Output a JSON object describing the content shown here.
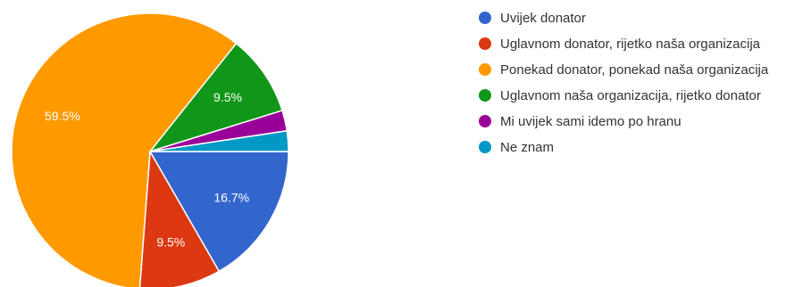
{
  "chart_data": {
    "type": "pie",
    "slices": [
      {
        "label": "Uvijek donator",
        "value": 16.7,
        "percent_label": "16.7%",
        "color": "#3366cc"
      },
      {
        "label": "Uglavnom donator, rijetko naša organizacija",
        "value": 9.5,
        "percent_label": "9.5%",
        "color": "#dc3912"
      },
      {
        "label": "Ponekad donator, ponekad naša organizacija",
        "value": 59.5,
        "percent_label": "59.5%",
        "color": "#ff9900"
      },
      {
        "label": "Uglavnom naša organizacija, rijetko donator",
        "value": 9.5,
        "percent_label": "9.5%",
        "color": "#109618"
      },
      {
        "label": "Mi uvijek sami idemo po hranu",
        "value": 2.4,
        "percent_label": "",
        "color": "#990099"
      },
      {
        "label": "Ne znam",
        "value": 2.4,
        "percent_label": "",
        "color": "#0099c6"
      }
    ],
    "legend_position": "right"
  }
}
